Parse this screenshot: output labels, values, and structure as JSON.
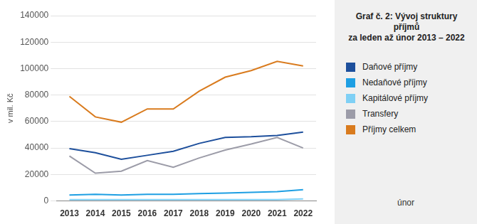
{
  "chart_data": {
    "type": "line",
    "title": [
      "Graf č. 2: Vývoj struktury příjmů",
      "za leden až únor 2013 – 2022"
    ],
    "y_label": "v mil. Kč",
    "annotation": "únor",
    "categories": [
      "2013",
      "2014",
      "2015",
      "2016",
      "2017",
      "2018",
      "2019",
      "2020",
      "2021",
      "2022"
    ],
    "series": [
      {
        "name": "Daňové příjmy",
        "color": "#1d4f9c",
        "values": [
          39500,
          36500,
          31500,
          34500,
          37500,
          43500,
          48000,
          48500,
          49500,
          52000
        ]
      },
      {
        "name": "Nedaňové příjmy",
        "color": "#1e9fe3",
        "values": [
          4500,
          5000,
          4500,
          5000,
          5000,
          5500,
          6000,
          6500,
          7000,
          8500
        ]
      },
      {
        "name": "Kapitálové příjmy",
        "color": "#7fd0f5",
        "values": [
          1000,
          1000,
          1000,
          1000,
          1000,
          1000,
          1000,
          1000,
          1000,
          1500
        ]
      },
      {
        "name": "Transfery",
        "color": "#9c9ca8",
        "values": [
          34000,
          21000,
          22500,
          30500,
          25500,
          32500,
          38500,
          43000,
          48000,
          40000
        ]
      },
      {
        "name": "Příjmy celkem",
        "color": "#d97b1e",
        "values": [
          79000,
          63500,
          59500,
          69500,
          69500,
          83000,
          93500,
          98500,
          105500,
          102000
        ]
      }
    ],
    "ylim": [
      0,
      140000
    ],
    "yticks": [
      0,
      20000,
      40000,
      60000,
      80000,
      100000,
      120000,
      140000
    ],
    "grid": true,
    "legend": "right"
  }
}
